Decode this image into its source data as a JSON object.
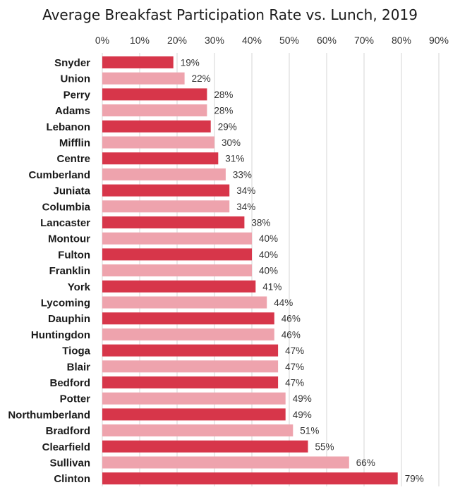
{
  "chart_data": {
    "type": "bar",
    "orientation": "horizontal",
    "title": "Average Breakfast Participation Rate vs. Lunch, 2019",
    "xlabel": "",
    "ylabel": "",
    "xlim": [
      0,
      90
    ],
    "grid": true,
    "x_tick_labels": [
      "0%",
      "10%",
      "20%",
      "30%",
      "40%",
      "50%",
      "60%",
      "70%",
      "80%",
      "90%"
    ],
    "categories": [
      "Snyder",
      "Union",
      "Perry",
      "Adams",
      "Lebanon",
      "Mifflin",
      "Centre",
      "Cumberland",
      "Juniata",
      "Columbia",
      "Lancaster",
      "Montour",
      "Fulton",
      "Franklin",
      "York",
      "Lycoming",
      "Dauphin",
      "Huntingdon",
      "Tioga",
      "Blair",
      "Bedford",
      "Potter",
      "Northumberland",
      "Bradford",
      "Clearfield",
      "Sullivan",
      "Clinton"
    ],
    "values": [
      19,
      22,
      28,
      28,
      29,
      30,
      31,
      33,
      34,
      34,
      38,
      40,
      40,
      40,
      41,
      44,
      46,
      46,
      47,
      47,
      47,
      49,
      49,
      51,
      55,
      66,
      79
    ],
    "data_labels": [
      "19%",
      "22%",
      "28%",
      "28%",
      "29%",
      "30%",
      "31%",
      "33%",
      "34%",
      "34%",
      "38%",
      "40%",
      "40%",
      "40%",
      "41%",
      "44%",
      "46%",
      "46%",
      "47%",
      "47%",
      "47%",
      "49%",
      "49%",
      "51%",
      "55%",
      "66%",
      "79%"
    ],
    "colors": {
      "dark": "#d7364a",
      "light": "#eea3ad"
    }
  }
}
